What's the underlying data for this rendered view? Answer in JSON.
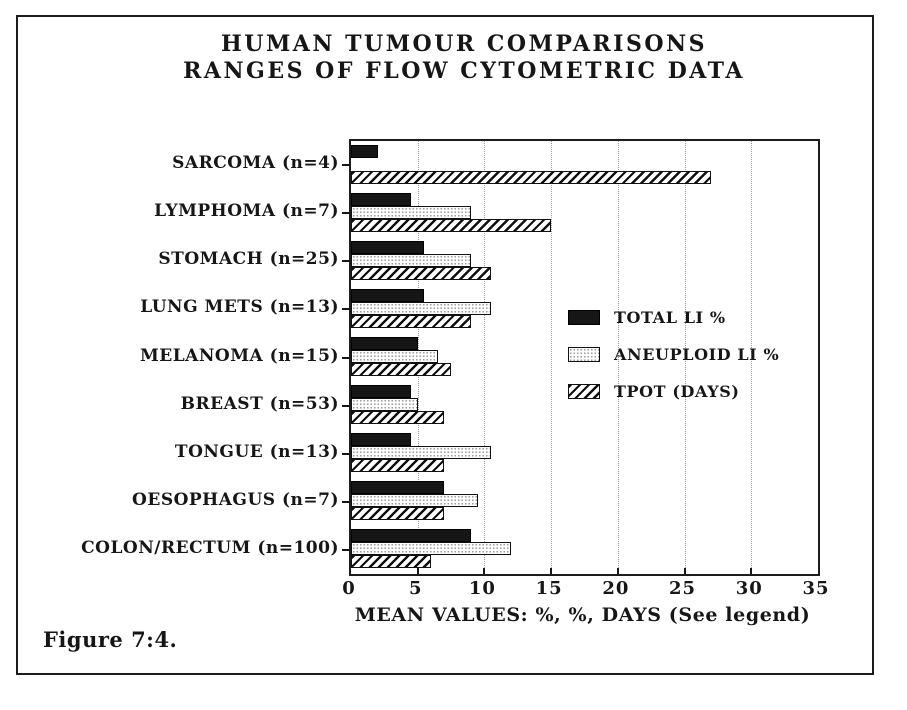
{
  "figure": {
    "title_line1": "HUMAN TUMOUR COMPARISONS",
    "title_line2": "RANGES OF FLOW CYTOMETRIC DATA",
    "caption": "Figure 7:4."
  },
  "chart_data": {
    "type": "bar",
    "orientation": "horizontal",
    "title": "HUMAN TUMOUR COMPARISONS",
    "subtitle": "RANGES OF FLOW CYTOMETRIC DATA",
    "xlabel": "MEAN VALUES: %, %, DAYS (See legend)",
    "xlim": [
      0,
      35
    ],
    "xticks": [
      0,
      5,
      10,
      15,
      20,
      25,
      30,
      35
    ],
    "grid": "vertical-dotted",
    "legend_position": "center-right",
    "categories": [
      "SARCOMA (n=4)",
      "LYMPHOMA (n=7)",
      "STOMACH (n=25)",
      "LUNG METS (n=13)",
      "MELANOMA (n=15)",
      "BREAST (n=53)",
      "TONGUE (n=13)",
      "OESOPHAGUS (n=7)",
      "COLON/RECTUM (n=100)"
    ],
    "series": [
      {
        "name": "TOTAL LI %",
        "pattern": "solid-black",
        "values": [
          2,
          4.5,
          5.5,
          5.5,
          5,
          4.5,
          4.5,
          7,
          9
        ]
      },
      {
        "name": "ANEUPLOID LI %",
        "pattern": "stipple-white",
        "values": [
          0,
          9,
          9,
          10.5,
          6.5,
          5,
          10.5,
          9.5,
          12
        ]
      },
      {
        "name": "TPOT (DAYS)",
        "pattern": "diagonal-hatch",
        "values": [
          27,
          15,
          10.5,
          9,
          7.5,
          7,
          7,
          7,
          6
        ]
      }
    ]
  },
  "colors": {
    "ink": "#161616",
    "background": "#ffffff",
    "grid": "#9a9a9a"
  }
}
